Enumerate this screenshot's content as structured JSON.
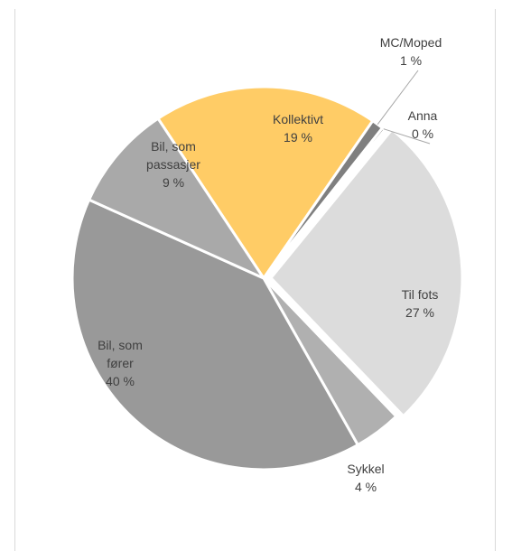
{
  "chart_data": {
    "type": "pie",
    "title": "",
    "slices": [
      {
        "label_lines": [
          "Kollektivt"
        ],
        "value": 19,
        "value_label": "19 %",
        "color": "#ffcc66"
      },
      {
        "label_lines": [
          "MC/Moped"
        ],
        "value": 1,
        "value_label": "1 %",
        "color": "#7f7f7f"
      },
      {
        "label_lines": [
          "Anna"
        ],
        "value": 0,
        "value_label": "0 %",
        "color": "#404040"
      },
      {
        "label_lines": [
          "Til fots"
        ],
        "value": 27,
        "value_label": "27 %",
        "color": "#dcdcdc"
      },
      {
        "label_lines": [
          "Sykkel"
        ],
        "value": 4,
        "value_label": "4 %",
        "color": "#b0b0b0"
      },
      {
        "label_lines": [
          "Bil, som",
          "fører"
        ],
        "value": 40,
        "value_label": "40 %",
        "color": "#999999"
      },
      {
        "label_lines": [
          "Bil, som",
          "passasjer"
        ],
        "value": 9,
        "value_label": "9 %",
        "color": "#a9a9a9"
      }
    ],
    "legend": "none",
    "data_labels": "category and percentage"
  }
}
